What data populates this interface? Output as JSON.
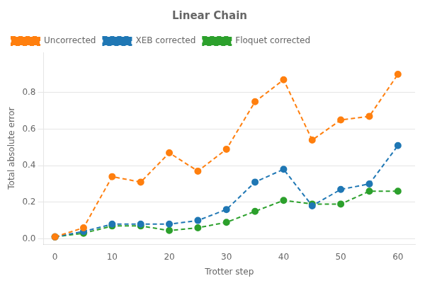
{
  "chart_data": {
    "type": "line",
    "title": "Linear Chain",
    "x_label": "Trotter step",
    "y_label": "Total absolute error",
    "x": [
      0,
      5,
      10,
      15,
      20,
      25,
      30,
      35,
      40,
      45,
      50,
      55,
      60
    ],
    "series": [
      {
        "name": "Uncorrected",
        "color": "#ff7f0e",
        "values": [
          0.01,
          0.06,
          0.34,
          0.31,
          0.47,
          0.37,
          0.49,
          0.75,
          0.87,
          0.54,
          0.65,
          0.67,
          0.9
        ]
      },
      {
        "name": "XEB corrected",
        "color": "#1f77b4",
        "values": [
          0.01,
          0.04,
          0.08,
          0.08,
          0.08,
          0.1,
          0.16,
          0.31,
          0.38,
          0.18,
          0.27,
          0.3,
          0.51
        ]
      },
      {
        "name": "Floquet corrected",
        "color": "#2ca02c",
        "values": [
          0.01,
          0.03,
          0.07,
          0.07,
          0.045,
          0.06,
          0.09,
          0.15,
          0.21,
          0.19,
          0.19,
          0.26,
          0.26
        ]
      }
    ],
    "xlim": [
      -2,
      63
    ],
    "xticks": [
      0,
      10,
      20,
      30,
      40,
      50,
      60
    ],
    "ylim": [
      -0.03,
      1.02
    ],
    "yticks": [
      {
        "value": 0.0,
        "label": "0.0"
      },
      0.2,
      0.4,
      0.6,
      0.8
    ],
    "grid": "y",
    "legend": "upper left",
    "marker": "circle",
    "line_style": "dashed"
  }
}
